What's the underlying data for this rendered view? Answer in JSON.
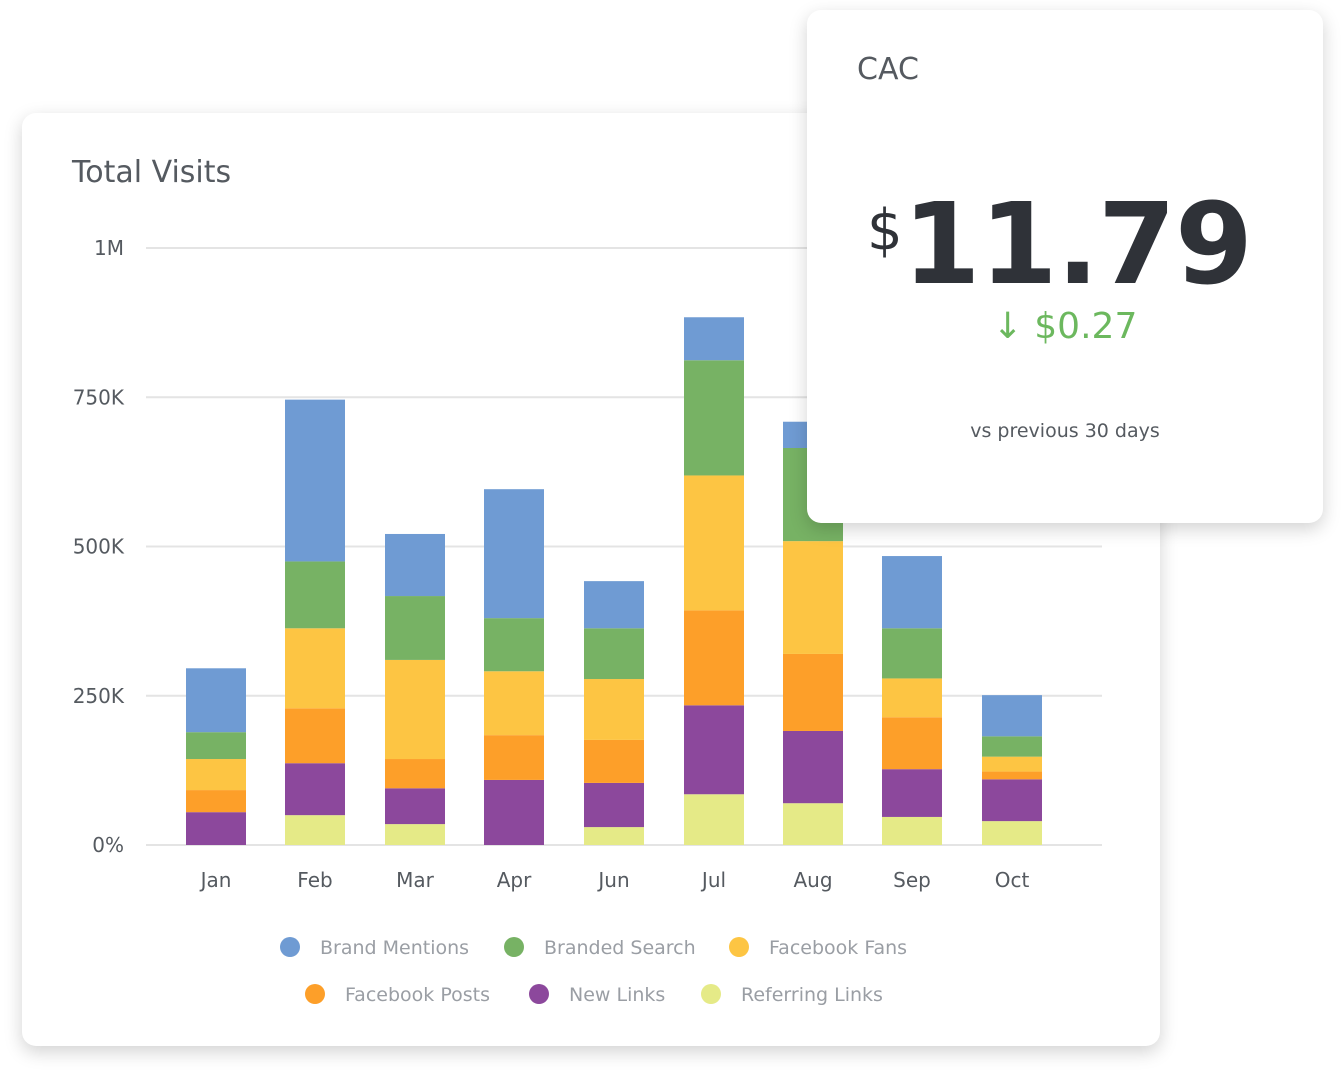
{
  "chart_data": {
    "type": "bar",
    "stacked": true,
    "title": "Total Visits",
    "categories": [
      "Jan",
      "Feb",
      "Mar",
      "Apr",
      "Jun",
      "Jul",
      "Aug",
      "Sep",
      "Oct"
    ],
    "ylim": [
      0,
      1000000
    ],
    "yticks": [
      0,
      250000,
      500000,
      750000,
      1000000
    ],
    "ytick_labels": [
      "0%",
      "250K",
      "500K",
      "750K",
      "1M"
    ],
    "grid": true,
    "legend_placement": "bottom",
    "series": [
      {
        "name": "Referring Links",
        "color": "#e5ea87",
        "values": [
          0,
          50000,
          35000,
          0,
          30000,
          85000,
          70000,
          47000,
          40000
        ]
      },
      {
        "name": "New Links",
        "color": "#8c489c",
        "values": [
          55000,
          87000,
          60000,
          109000,
          74000,
          149000,
          121000,
          80000,
          70000
        ]
      },
      {
        "name": "Facebook Posts",
        "color": "#fd9f29",
        "values": [
          37000,
          92000,
          49000,
          75000,
          72000,
          159000,
          129000,
          87000,
          13000
        ]
      },
      {
        "name": "Facebook Fans",
        "color": "#fdc543",
        "values": [
          52000,
          134000,
          166000,
          107000,
          102000,
          226000,
          189000,
          65000,
          25000
        ]
      },
      {
        "name": "Branded Search",
        "color": "#77b264",
        "values": [
          45000,
          112000,
          107000,
          89000,
          85000,
          193000,
          156000,
          84000,
          34000
        ]
      },
      {
        "name": "Brand Mentions",
        "color": "#6f9bd3",
        "values": [
          107000,
          271000,
          104000,
          216000,
          79000,
          72000,
          44000,
          121000,
          69000
        ]
      }
    ],
    "legend_order": [
      "Brand Mentions",
      "Branded Search",
      "Facebook Fans",
      "Facebook Posts",
      "New Links",
      "Referring Links"
    ]
  },
  "cac": {
    "title": "CAC",
    "currency": "$",
    "value": "11.79",
    "delta_icon": "arrow-down-icon",
    "delta_arrow": "↓",
    "delta": "$0.27",
    "delta_color": "#6cb85e",
    "comparison": "vs previous 30 days"
  }
}
